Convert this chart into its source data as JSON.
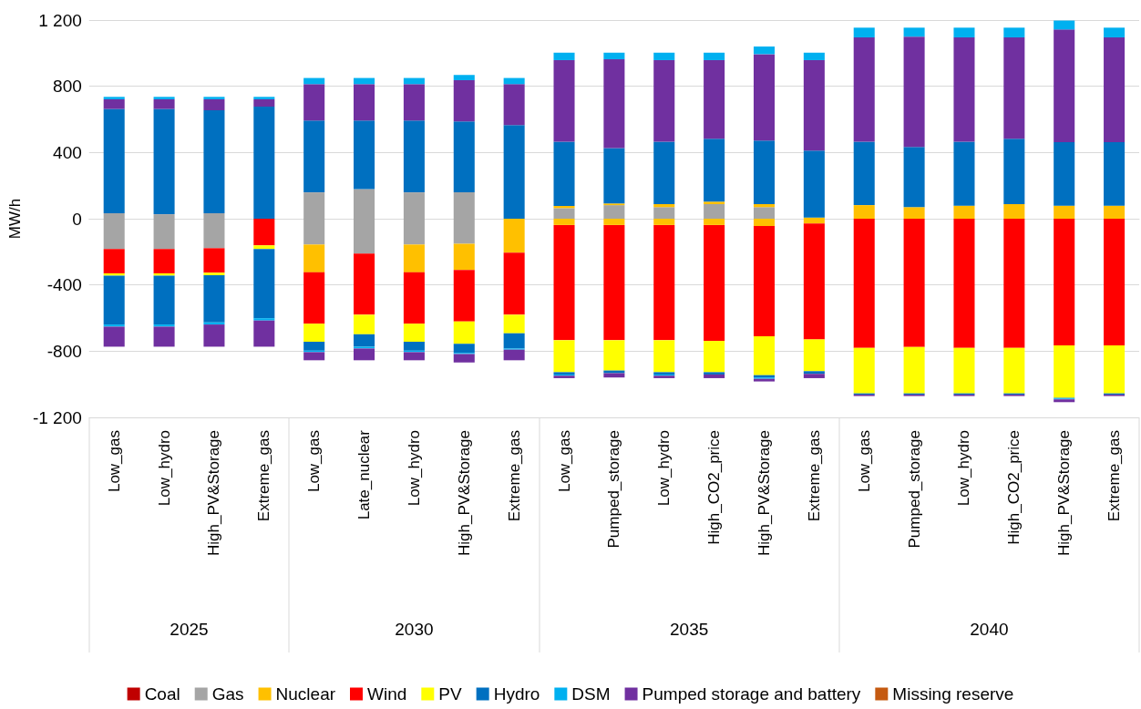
{
  "chart_data": {
    "type": "bar",
    "stacked": true,
    "ylabel": "MW/h",
    "categories": [
      "Low_gas",
      "Low_hydro",
      "High_PV&Storage",
      "Extreme_gas",
      "Low_gas",
      "Late_nuclear",
      "Low_hydro",
      "High_PV&Storage",
      "Extreme_gas",
      "Low_gas",
      "Pumped_storage",
      "Low_hydro",
      "High_CO2_price",
      "High_PV&Storage",
      "Extreme_gas",
      "Low_gas",
      "Pumped_storage",
      "Low_hydro",
      "High_CO2_price",
      "High_PV&Storage",
      "Extreme_gas"
    ],
    "annotations": [
      "2025",
      "2030",
      "2035",
      "2040"
    ],
    "ylim": [
      -1200,
      1200
    ],
    "yticks": [
      {
        "value": -1200,
        "label": "-1 200"
      },
      -800,
      -400,
      0,
      400,
      800,
      {
        "value": 1200,
        "label": "1 200"
      }
    ],
    "grid": "y",
    "legend": "bottom",
    "series": [
      {
        "name": "Coal",
        "color": "#c00000",
        "values": [
          0,
          0,
          0,
          0,
          0,
          0,
          0,
          0,
          0,
          0,
          0,
          0,
          0,
          0,
          0,
          0,
          0,
          0,
          0,
          0,
          0
        ]
      },
      {
        "name": "Gas",
        "color": "#a5a5a5",
        "values": [
          -183,
          -183,
          -178,
          0,
          -156,
          -211,
          -156,
          -152,
          0,
          0,
          0,
          0,
          0,
          0,
          0,
          0,
          0,
          0,
          0,
          0,
          0
        ]
      },
      {
        "name": "Nuclear",
        "color": "#ffc000",
        "values": [
          0,
          0,
          0,
          0,
          -168,
          0,
          -168,
          -157,
          -205,
          -38,
          -38,
          -38,
          -38,
          -44,
          -29,
          0,
          0,
          0,
          0,
          0,
          0
        ]
      },
      {
        "name": "Wind",
        "color": "#ff0000",
        "values": [
          -147,
          -147,
          -148,
          -161,
          -310,
          -369,
          -310,
          -312,
          -375,
          -696,
          -696,
          -696,
          -700,
          -666,
          -700,
          -780,
          -775,
          -780,
          -780,
          -765,
          -765
        ]
      },
      {
        "name": "PV",
        "color": "#ffff00",
        "values": [
          -14,
          -14,
          -15,
          -22,
          -109,
          -118,
          -109,
          -135,
          -112,
          -193,
          -183,
          -193,
          -189,
          -235,
          -192,
          -275,
          -280,
          -275,
          -275,
          -317,
          -290
        ]
      },
      {
        "name": "Hydro",
        "color": "#0070c0",
        "values": [
          -295,
          -295,
          -285,
          -418,
          -54,
          -75,
          -54,
          -55,
          -92,
          -14,
          -16,
          -14,
          -14,
          -14,
          -16,
          -7,
          -7,
          -7,
          -7,
          -4,
          -7
        ]
      },
      {
        "name": "DSM",
        "color": "#00b0f0",
        "values": [
          -13,
          -13,
          -13,
          -14,
          -9,
          -11,
          -9,
          -7,
          -7,
          -7,
          0,
          -7,
          0,
          -8,
          0,
          0,
          0,
          0,
          0,
          -5,
          0
        ]
      },
      {
        "name": "Pumped storage and battery",
        "color": "#7030a0",
        "values": [
          -121,
          -121,
          -134,
          -158,
          -49,
          -71,
          -49,
          -50,
          -64,
          -15,
          -26,
          -15,
          -22,
          -16,
          -26,
          -9,
          -9,
          -9,
          -9,
          -17,
          -9
        ]
      },
      {
        "name": "Missing reserve",
        "color": "#c55a11",
        "values": [
          0,
          0,
          0,
          0,
          0,
          0,
          0,
          0,
          0,
          0,
          0,
          0,
          0,
          0,
          0,
          0,
          0,
          0,
          0,
          0,
          0
        ]
      },
      {
        "color": "#a5a5a5",
        "values": [
          33,
          27,
          33,
          0,
          159,
          179,
          159,
          159,
          0,
          64,
          82,
          70,
          88,
          70,
          0,
          0,
          0,
          0,
          0,
          0,
          0
        ]
      },
      {
        "color": "#ffc000",
        "values": [
          0,
          0,
          0,
          0,
          0,
          0,
          0,
          0,
          0,
          13,
          10,
          18,
          15,
          18,
          7,
          82,
          70,
          79,
          88,
          79,
          79
        ]
      },
      {
        "color": "#0070c0",
        "values": [
          630,
          636,
          622,
          677,
          434,
          414,
          434,
          429,
          566,
          388,
          335,
          377,
          380,
          384,
          405,
          383,
          364,
          386,
          395,
          384,
          384
        ]
      },
      {
        "color": "#7030a0",
        "values": [
          58,
          58,
          66,
          44,
          220,
          220,
          220,
          249,
          247,
          493,
          536,
          493,
          475,
          522,
          546,
          630,
          666,
          630,
          612,
          680,
          632
        ]
      },
      {
        "color": "#00b0f0",
        "values": [
          15,
          15,
          15,
          15,
          37,
          37,
          37,
          31,
          37,
          45,
          40,
          45,
          45,
          46,
          45,
          59,
          54,
          59,
          59,
          54,
          59
        ]
      }
    ]
  }
}
